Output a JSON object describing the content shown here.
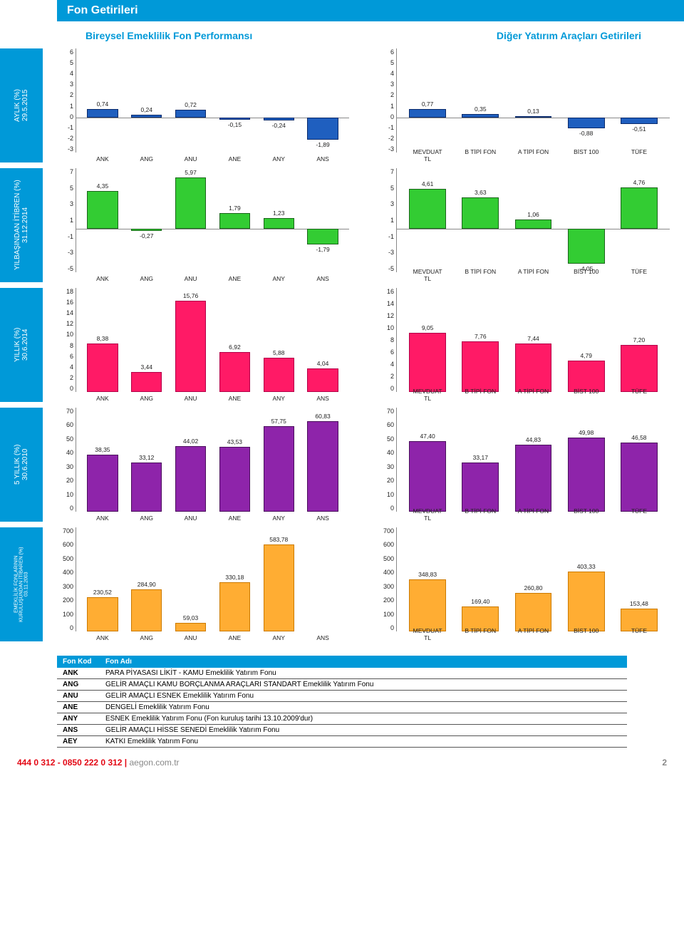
{
  "header": "Fon Getirileri",
  "sub_left": "Bireysel Emeklilik Fon Performansı",
  "sub_right": "Diğer Yatırım Araçları Getirileri",
  "footer_phone": "444 0 312 - 0850 222 0 312 | ",
  "footer_site": "aegon.com.tr",
  "footer_page": "2",
  "legend_headers": [
    "Fon Kod",
    "Fon Adı"
  ],
  "legend": [
    {
      "code": "ANK",
      "name": "PARA PİYASASI LİKİT - KAMU Emeklilik Yatırım Fonu"
    },
    {
      "code": "ANG",
      "name": "GELİR AMAÇLI KAMU BORÇLANMA ARAÇLARI STANDART Emeklilik Yatırım Fonu"
    },
    {
      "code": "ANU",
      "name": "GELİR AMAÇLI ESNEK Emeklilik Yatırım Fonu"
    },
    {
      "code": "ANE",
      "name": "DENGELİ Emeklilik Yatırım Fonu"
    },
    {
      "code": "ANY",
      "name": "ESNEK Emeklilik Yatırım Fonu (Fon kuruluş tarihi 13.10.2009'dur)"
    },
    {
      "code": "ANS",
      "name": "GELİR AMAÇLI HİSSE SENEDİ Emeklilik Yatırım Fonu"
    },
    {
      "code": "AEY",
      "name": "KATKI Emeklilik Yatırım Fonu"
    }
  ],
  "row_labels": [
    "AYLIK (%)\n29.5.2015",
    "YILBAŞINDAN İTİBREN (%)\n31.12.2014",
    "YILLIK (%)\n30.6.2014",
    "5 YILLIK (%)\n30.6.2010",
    "EMEKLİLİK FONLARININ\nKURULUŞUNDAN İTİBAREN (%)\n03.11.2003"
  ],
  "fund_labels": [
    "ANK",
    "ANG",
    "ANU",
    "ANE",
    "ANY",
    "ANS"
  ],
  "instr_labels": [
    "MEVDUAT\nTL",
    "B TİPİ FON",
    "A TİPİ FON",
    "BİST 100",
    "TÜFE"
  ],
  "colors": {
    "blue": "#1f5fbf",
    "green": "#33cc33",
    "pink": "#ff1a66",
    "purple": "#8e24aa",
    "orange": "#ffad33",
    "stroke": "#0a2a6b",
    "stroke_green": "#1a661a",
    "stroke_pink": "#b30047",
    "stroke_purple": "#4a0f5c",
    "stroke_orange": "#cc7a00"
  },
  "rows": [
    {
      "left": {
        "min": -3,
        "max": 6,
        "step": 1,
        "color": "blue",
        "stroke": "stroke",
        "values": [
          0.74,
          0.24,
          0.72,
          -0.15,
          -0.24,
          -1.89
        ],
        "labels": [
          "0,74",
          "0,24",
          "0,72",
          "-0,15",
          "-0,24",
          "-1,89"
        ]
      },
      "right": {
        "min": -3,
        "max": 6,
        "step": 1,
        "color": "blue",
        "stroke": "stroke",
        "values": [
          0.77,
          0.35,
          0.13,
          -0.88,
          -0.51
        ],
        "labels": [
          "0,77",
          "0,35",
          "0,13",
          "-0,88",
          "-0,51"
        ]
      }
    },
    {
      "left": {
        "min": -5,
        "max": 7,
        "step": 2,
        "color": "green",
        "stroke": "stroke_green",
        "values": [
          4.35,
          -0.27,
          5.97,
          1.79,
          1.23,
          -1.79
        ],
        "labels": [
          "4,35",
          "-0,27",
          "5,97",
          "1,79",
          "1,23",
          "-1,79"
        ]
      },
      "right": {
        "min": -5,
        "max": 7,
        "step": 2,
        "color": "green",
        "stroke": "stroke_green",
        "values": [
          4.61,
          3.63,
          1.06,
          -4.05,
          4.76
        ],
        "labels": [
          "4,61",
          "3,63",
          "1,06",
          "-4,05",
          "4,76"
        ]
      }
    },
    {
      "left": {
        "min": 0,
        "max": 18,
        "step": 2,
        "color": "pink",
        "stroke": "stroke_pink",
        "values": [
          8.38,
          3.44,
          15.76,
          6.92,
          5.88,
          4.04
        ],
        "labels": [
          "8,38",
          "3,44",
          "15,76",
          "6,92",
          "5,88",
          "4,04"
        ]
      },
      "right": {
        "min": 0,
        "max": 16,
        "step": 2,
        "color": "pink",
        "stroke": "stroke_pink",
        "values": [
          9.05,
          7.76,
          7.44,
          4.79,
          7.2
        ],
        "labels": [
          "9,05",
          "7,76",
          "7,44",
          "4,79",
          "7,20"
        ]
      }
    },
    {
      "left": {
        "min": 0,
        "max": 70,
        "step": 10,
        "color": "purple",
        "stroke": "stroke_purple",
        "values": [
          38.35,
          33.12,
          44.02,
          43.53,
          57.75,
          60.83
        ],
        "labels": [
          "38,35",
          "33,12",
          "44,02",
          "43,53",
          "57,75",
          "60,83"
        ]
      },
      "right": {
        "min": 0,
        "max": 70,
        "step": 10,
        "color": "purple",
        "stroke": "stroke_purple",
        "values": [
          47.4,
          33.17,
          44.83,
          49.98,
          46.58
        ],
        "labels": [
          "47,40",
          "33,17",
          "44,83",
          "49,98",
          "46,58"
        ]
      }
    },
    {
      "left": {
        "min": 0,
        "max": 700,
        "step": 100,
        "color": "orange",
        "stroke": "stroke_orange",
        "values": [
          230.52,
          284.9,
          59.03,
          330.18,
          583.78,
          null
        ],
        "labels": [
          "230,52",
          "284,90",
          "59,03",
          "330,18",
          "583,78",
          ""
        ]
      },
      "right": {
        "min": 0,
        "max": 700,
        "step": 100,
        "color": "orange",
        "stroke": "stroke_orange",
        "values": [
          348.83,
          169.4,
          260.8,
          403.33,
          153.48
        ],
        "labels": [
          "348,83",
          "169,40",
          "260,80",
          "403,33",
          "153,48"
        ]
      }
    }
  ]
}
